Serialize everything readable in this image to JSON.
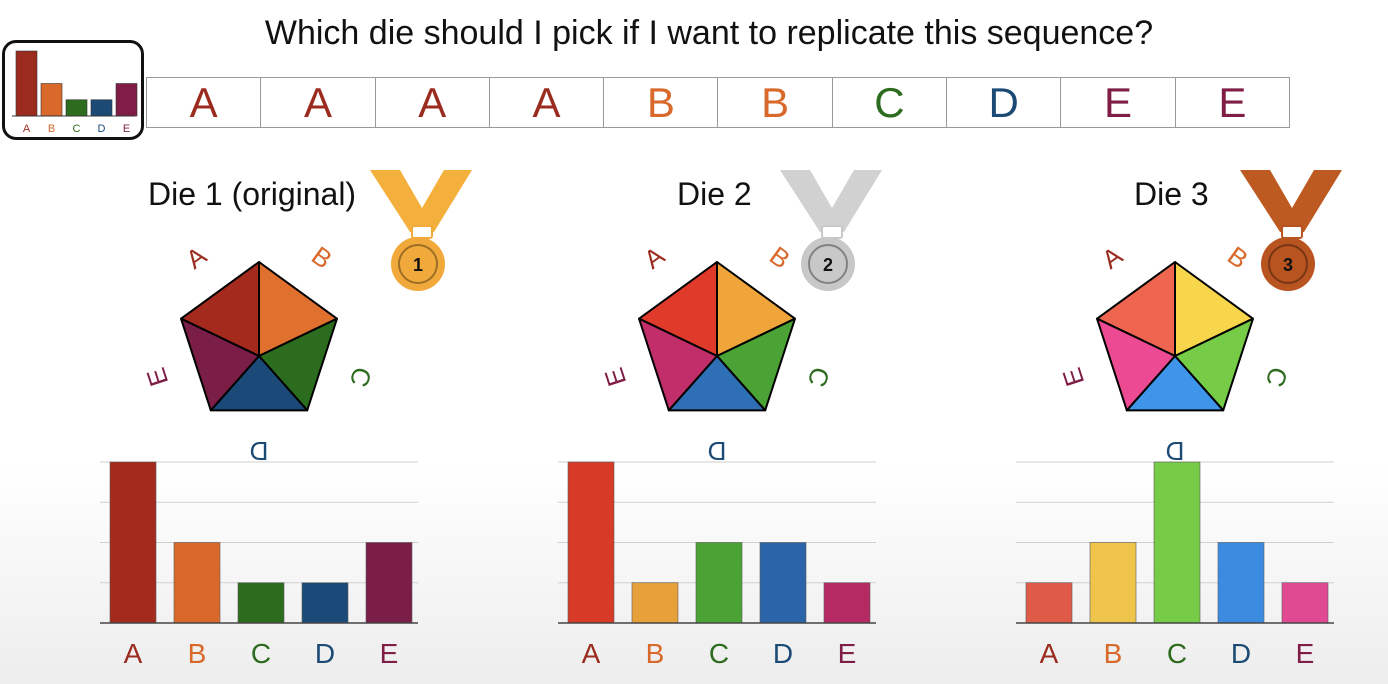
{
  "title": "Which die should I pick if I want to replicate this sequence?",
  "sequence": [
    "A",
    "A",
    "A",
    "A",
    "B",
    "B",
    "C",
    "D",
    "E",
    "E"
  ],
  "face_labels": [
    "A",
    "B",
    "C",
    "D",
    "E"
  ],
  "thumbnail": {
    "labels": [
      "A",
      "B",
      "C",
      "D",
      "E"
    ],
    "values": [
      4,
      2,
      1,
      1,
      2
    ],
    "colors": [
      "#9b2b1e",
      "#d9692b",
      "#2d6b1e",
      "#1b4a74",
      "#7f1d47"
    ]
  },
  "dice": [
    {
      "title": "Die 1 (original)",
      "medal": "1",
      "medal_color": "#f2a93b",
      "medal_ribbon": "#f4b03c",
      "face_colors": [
        "#a32a1c",
        "#e0702e",
        "#2b6c1f",
        "#1c4a78",
        "#7a1e48"
      ]
    },
    {
      "title": "Die 2",
      "medal": "2",
      "medal_color": "#c8c8c8",
      "medal_ribbon": "#d1d1d1",
      "face_colors": [
        "#df3a2a",
        "#f0a53b",
        "#4aa334",
        "#2f6fb5",
        "#c22e6a"
      ]
    },
    {
      "title": "Die 3",
      "medal": "3",
      "medal_color": "#b8541f",
      "medal_ribbon": "#bd5a22",
      "face_colors": [
        "#ee6650",
        "#f7d64c",
        "#76cc47",
        "#3e95ea",
        "#ec4a92"
      ]
    }
  ],
  "label_colors": [
    "#9b2b1e",
    "#d9692b",
    "#2d6b1e",
    "#1b4a74",
    "#7f1d47"
  ],
  "chart_data": [
    {
      "type": "bar",
      "categories": [
        "A",
        "B",
        "C",
        "D",
        "E"
      ],
      "values": [
        4,
        2,
        1,
        1,
        2
      ],
      "ylim": [
        0,
        4
      ],
      "colors": [
        "#a32a1c",
        "#d9692b",
        "#2b6c1f",
        "#1c4a78",
        "#7a1e48"
      ]
    },
    {
      "type": "bar",
      "categories": [
        "A",
        "B",
        "C",
        "D",
        "E"
      ],
      "values": [
        4,
        1,
        2,
        2,
        1
      ],
      "ylim": [
        0,
        4
      ],
      "colors": [
        "#d83a28",
        "#e8a03a",
        "#4aa334",
        "#2b64a8",
        "#b62a64"
      ]
    },
    {
      "type": "bar",
      "categories": [
        "A",
        "B",
        "C",
        "D",
        "E"
      ],
      "values": [
        1,
        2,
        4,
        2,
        1
      ],
      "ylim": [
        0,
        4
      ],
      "colors": [
        "#e05a48",
        "#eec54a",
        "#76cc47",
        "#3b8ce0",
        "#e04a92"
      ]
    }
  ]
}
